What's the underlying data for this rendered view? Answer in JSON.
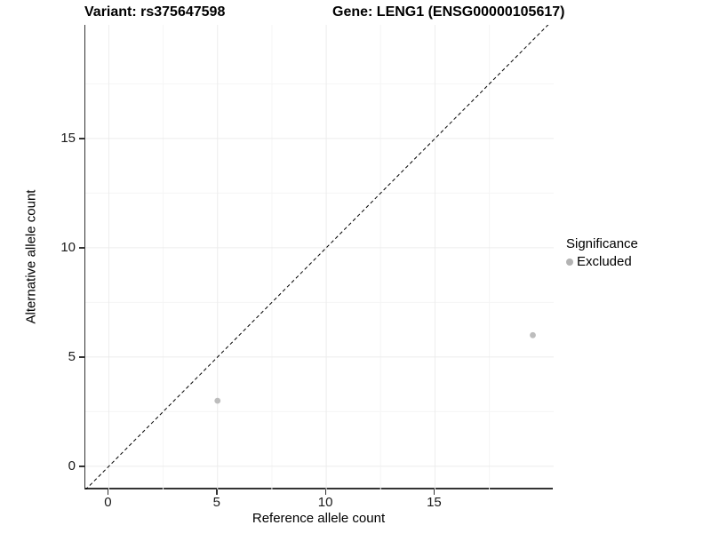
{
  "chart_data": {
    "type": "scatter",
    "title_left": "Variant: rs375647598",
    "title_right": "Gene: LENG1 (ENSG00000105617)",
    "xlabel": "Reference allele count",
    "ylabel": "Alternative allele count",
    "x_ticks": [
      0,
      5,
      10,
      15
    ],
    "y_ticks": [
      0,
      5,
      10,
      15
    ],
    "x_minor_ticks": [
      2.5,
      7.5,
      12.5,
      17.5
    ],
    "y_minor_ticks": [
      2.5,
      7.5,
      12.5,
      17.5
    ],
    "xlim": [
      -1.08,
      20.46
    ],
    "ylim": [
      -1.06,
      20.2
    ],
    "grid": true,
    "identity_line": {
      "type": "dashed",
      "equation": "y = x"
    },
    "series": [
      {
        "name": "Excluded",
        "points": [
          {
            "x": 5,
            "y": 3
          },
          {
            "x": 19.5,
            "y": 6
          }
        ]
      }
    ],
    "legend": {
      "title": "Significance",
      "position": "right",
      "items": [
        {
          "label": "Excluded"
        }
      ]
    }
  },
  "colors": {
    "point": "#bdbdbd",
    "legend_key": "#b3b3b3",
    "grid_major": "#ececec",
    "grid_minor": "#f5f5f5",
    "axis_line": "#333333",
    "identity_line": "#000000",
    "text": "#000000"
  }
}
